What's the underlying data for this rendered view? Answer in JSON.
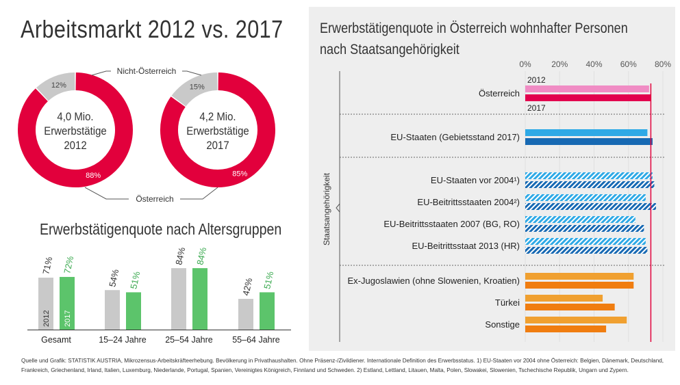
{
  "title": "Arbeitsmarkt 2012 vs. 2017",
  "donuts": {
    "label_top": "Nicht-Österreich",
    "label_bottom": "Österreich",
    "colors": {
      "austria": "#e2003c",
      "non_austria": "#c9c9c9"
    },
    "items": [
      {
        "line1": "4,0 Mio.",
        "line2": "Erwerbstätige",
        "line3": "2012",
        "austria_pct": 88,
        "non_austria_pct": 12,
        "austria_label": "88%",
        "non_austria_label": "12%"
      },
      {
        "line1": "4,2 Mio.",
        "line2": "Erwerbstätige",
        "line3": "2017",
        "austria_pct": 85,
        "non_austria_pct": 15,
        "austria_label": "85%",
        "non_austria_label": "15%"
      }
    ]
  },
  "age_chart": {
    "title": "Erwerbstätigenquote nach Altersgruppen",
    "year_labels": [
      "2012",
      "2017"
    ],
    "colors": {
      "2012": "#c9c9c9",
      "2017": "#5cc46b"
    },
    "groups": [
      {
        "label": "Gesamt",
        "v2012": 71,
        "v2017": 72,
        "l2012": "71%",
        "l2017": "72%"
      },
      {
        "label": "15–24 Jahre",
        "v2012": 54,
        "v2017": 51,
        "l2012": "54%",
        "l2017": "51%"
      },
      {
        "label": "25–54 Jahre",
        "v2012": 84,
        "v2017": 84,
        "l2012": "84%",
        "l2017": "84%"
      },
      {
        "label": "55–64 Jahre",
        "v2012": 42,
        "v2017": 51,
        "l2012": "42%",
        "l2017": "51%"
      }
    ]
  },
  "citizenship_chart": {
    "title_line1": "Erwerbstätigenquote in Österreich wohnhafter Personen",
    "title_line2": "nach Staatsangehörigkeit",
    "axis_ticks": [
      "0%",
      "20%",
      "40%",
      "60%",
      "80%"
    ],
    "axis_values": [
      0,
      20,
      40,
      60,
      80
    ],
    "y_axis_label": "Staatsangehörigkeit",
    "label_2012": "2012",
    "label_2017": "2017",
    "reference_value": 73,
    "reference_color": "#e2003c",
    "categories": [
      {
        "label": "Österreich",
        "v2012": 72,
        "v2017": 73,
        "c2012": "#f08cc4",
        "c2017": "#e2004e",
        "hatched": false
      },
      {
        "label": "EU-Staaten (Gebietsstand 2017)",
        "v2012": 71,
        "v2017": 74,
        "c2012": "#2ea9e6",
        "c2017": "#1769b3",
        "hatched": false
      },
      {
        "label": "EU-Staaten vor 2004¹)",
        "v2012": 74,
        "v2017": 75,
        "c2012": "#2ea9e6",
        "c2017": "#1769b3",
        "hatched": true
      },
      {
        "label": "EU-Beitrittsstaaten 2004²)",
        "v2012": 70,
        "v2017": 76,
        "c2012": "#2ea9e6",
        "c2017": "#1769b3",
        "hatched": true
      },
      {
        "label": "EU-Beitrittsstaaten 2007 (BG, RO)",
        "v2012": 64,
        "v2017": 69,
        "c2012": "#2ea9e6",
        "c2017": "#1769b3",
        "hatched": true
      },
      {
        "label": "EU-Beitrittsstaat 2013 (HR)",
        "v2012": 70,
        "v2017": 71,
        "c2012": "#2ea9e6",
        "c2017": "#1769b3",
        "hatched": true
      },
      {
        "label": "Ex-Jugoslawien (ohne Slowenien, Kroatien)",
        "v2012": 63,
        "v2017": 63,
        "c2012": "#f0a030",
        "c2017": "#f07d10",
        "hatched": false
      },
      {
        "label": "Türkei",
        "v2012": 45,
        "v2017": 52,
        "c2012": "#f0a030",
        "c2017": "#f07d10",
        "hatched": false
      },
      {
        "label": "Sonstige",
        "v2012": 59,
        "v2017": 47,
        "c2012": "#f0a030",
        "c2017": "#f07d10",
        "hatched": false
      }
    ]
  },
  "footer": {
    "line1": "Quelle und Grafik: STATISTIK AUSTRIA, Mikrozensus-Arbeitskräfteerhebung. Bevölkerung in Privathaushalten. Ohne Präsenz-/Zivildiener. Internationale Definition des Erwerbsstatus. 1) EU-Staaten vor 2004 ohne Österreich: Belgien, Dänemark, Deutschland,",
    "line2": "Frankreich, Griechenland, Irland, Italien, Luxemburg, Niederlande, Portugal, Spanien, Vereinigtes Königreich, Finnland und Schweden. 2) Estland, Lettland, Litauen, Malta, Polen, Slowakei, Slowenien, Tschechische Republik, Ungarn und Zypern."
  }
}
